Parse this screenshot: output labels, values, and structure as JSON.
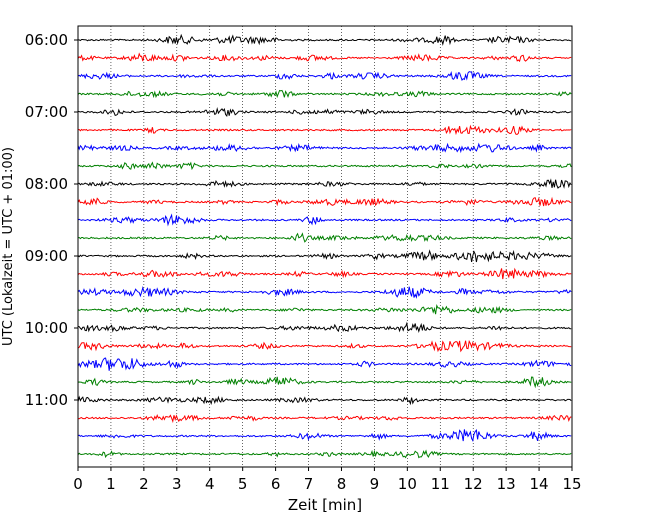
{
  "chart_data": {
    "type": "line",
    "title": "",
    "xlabel": "Zeit  [min]",
    "ylabel": "UTC (Lokalzeit = UTC + 01:00)",
    "xlim": [
      0,
      15
    ],
    "xticks": [
      0,
      1,
      2,
      3,
      4,
      5,
      6,
      7,
      8,
      9,
      10,
      11,
      12,
      13,
      14,
      15
    ],
    "yticks": [
      "06:00",
      "07:00",
      "08:00",
      "09:00",
      "10:00",
      "11:00"
    ],
    "vertical_grid": true,
    "grid_style": "dotted",
    "trace_interval_min": 15,
    "trace_colors": [
      "#000000",
      "#ff0000",
      "#0000ff",
      "#008000"
    ],
    "traces": [
      {
        "start": "06:00",
        "color": "#000000"
      },
      {
        "start": "06:15",
        "color": "#ff0000"
      },
      {
        "start": "06:30",
        "color": "#0000ff"
      },
      {
        "start": "06:45",
        "color": "#008000"
      },
      {
        "start": "07:00",
        "color": "#000000"
      },
      {
        "start": "07:15",
        "color": "#ff0000"
      },
      {
        "start": "07:30",
        "color": "#0000ff"
      },
      {
        "start": "07:45",
        "color": "#008000"
      },
      {
        "start": "08:00",
        "color": "#000000"
      },
      {
        "start": "08:15",
        "color": "#ff0000"
      },
      {
        "start": "08:30",
        "color": "#0000ff"
      },
      {
        "start": "08:45",
        "color": "#008000"
      },
      {
        "start": "09:00",
        "color": "#000000"
      },
      {
        "start": "09:15",
        "color": "#ff0000"
      },
      {
        "start": "09:30",
        "color": "#0000ff"
      },
      {
        "start": "09:45",
        "color": "#008000"
      },
      {
        "start": "10:00",
        "color": "#000000"
      },
      {
        "start": "10:15",
        "color": "#ff0000"
      },
      {
        "start": "10:30",
        "color": "#0000ff"
      },
      {
        "start": "10:45",
        "color": "#008000"
      },
      {
        "start": "11:00",
        "color": "#000000"
      },
      {
        "start": "11:15",
        "color": "#ff0000"
      },
      {
        "start": "11:30",
        "color": "#0000ff"
      },
      {
        "start": "11:45",
        "color": "#008000"
      }
    ]
  }
}
